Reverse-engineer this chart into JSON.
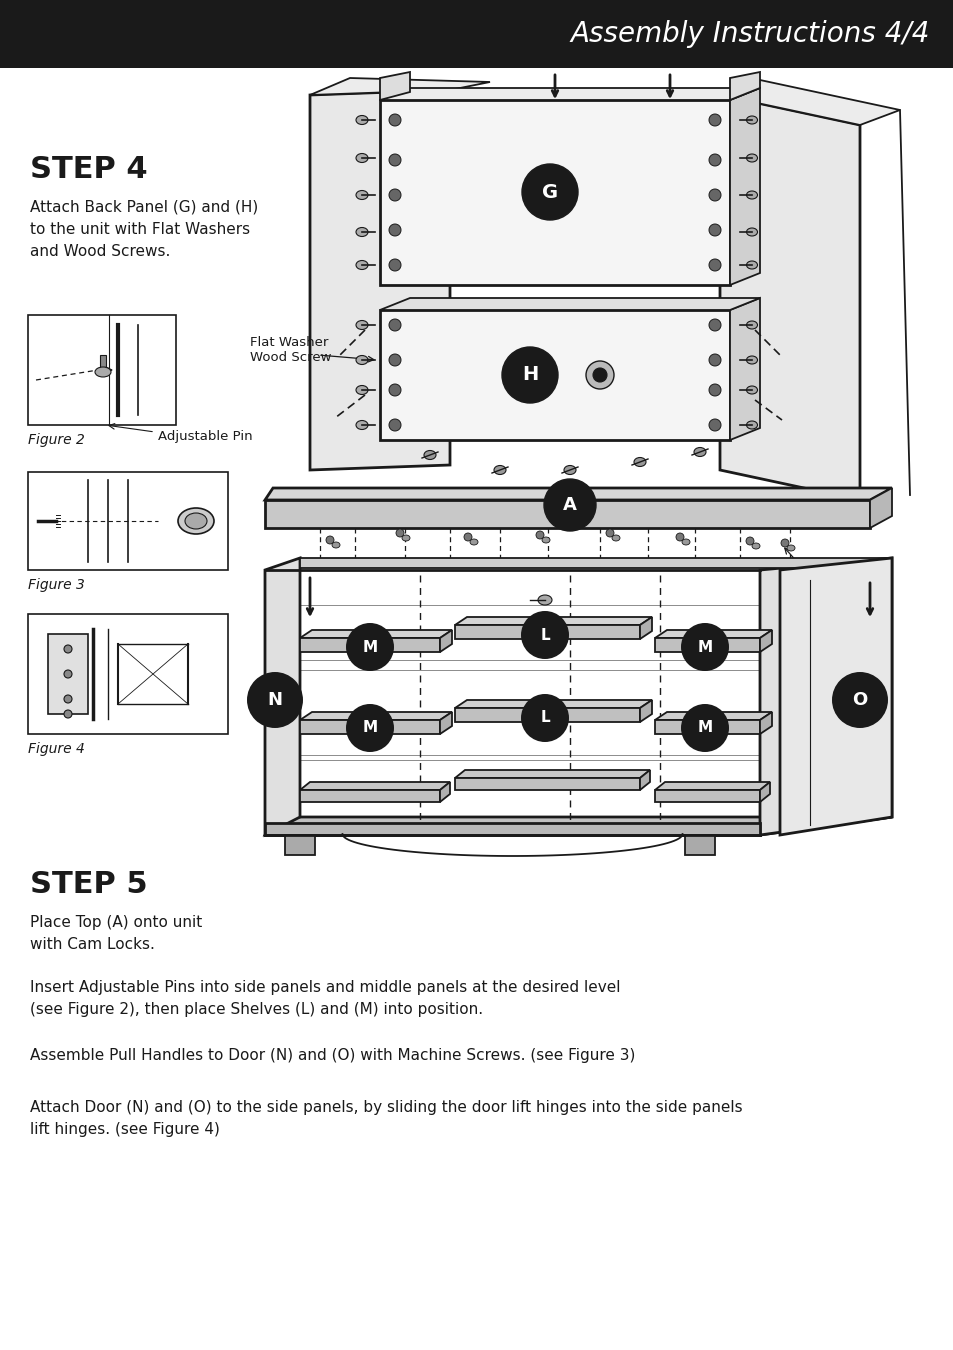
{
  "page_background": "#ffffff",
  "header_bg": "#1a1a1a",
  "header_text": "Assembly Instructions 4/4",
  "header_text_color": "#ffffff",
  "header_fontsize": 20,
  "step4_title": "STEP 4",
  "step4_desc": "Attach Back Panel (G) and (H)\nto the unit with Flat Washers\nand Wood Screws.",
  "step5_title": "STEP 5",
  "step5_desc1": "Place Top (A) onto unit\nwith Cam Locks.",
  "step5_desc2": "Insert Adjustable Pins into side panels and middle panels at the desired level\n(see Figure 2), then place Shelves (L) and (M) into position.",
  "step5_desc3": "Assemble Pull Handles to Door (N) and (O) with Machine Screws. (see Figure 3)",
  "step5_desc4": "Attach Door (N) and (O) to the side panels, by sliding the door lift hinges into the side panels\nlift hinges. (see Figure 4)",
  "figure2_label": "Figure 2",
  "figure3_label": "Figure 3",
  "figure4_label": "Figure 4",
  "flat_washer_label": "Flat Washer\nWood Screw",
  "adj_pin_label": "Adjustable Pin",
  "adj_pin2_label": "Adjustable\nPin",
  "text_color": "#1a1a1a",
  "col": "#1a1a1a"
}
